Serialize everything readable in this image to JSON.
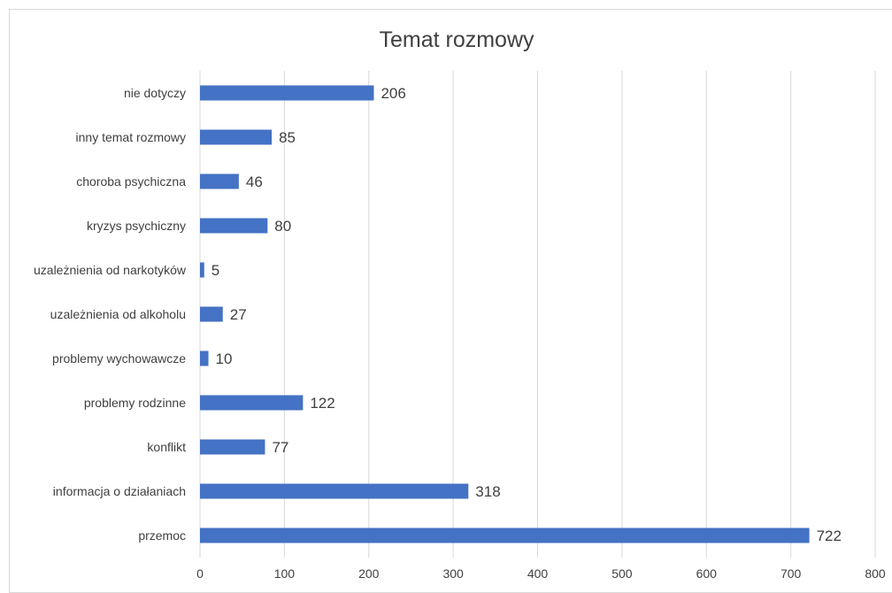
{
  "chart_data": {
    "type": "bar",
    "orientation": "horizontal",
    "title": "Temat rozmowy",
    "categories": [
      "nie dotyczy",
      "inny temat rozmowy",
      "choroba psychiczna",
      "kryzys psychiczny",
      "uzależnienia od narkotyków",
      "uzależnienia od alkoholu",
      "problemy wychowawcze",
      "problemy rodzinne",
      "konflikt",
      "informacja o działaniach",
      "przemoc"
    ],
    "values": [
      206,
      85,
      46,
      80,
      5,
      27,
      10,
      122,
      77,
      318,
      722
    ],
    "xlim": [
      0,
      800
    ],
    "xticks": [
      0,
      100,
      200,
      300,
      400,
      500,
      600,
      700,
      800
    ],
    "grid": true,
    "bar_color": "#4472c4",
    "grid_color": "#d9d9d9",
    "data_labels": true
  }
}
